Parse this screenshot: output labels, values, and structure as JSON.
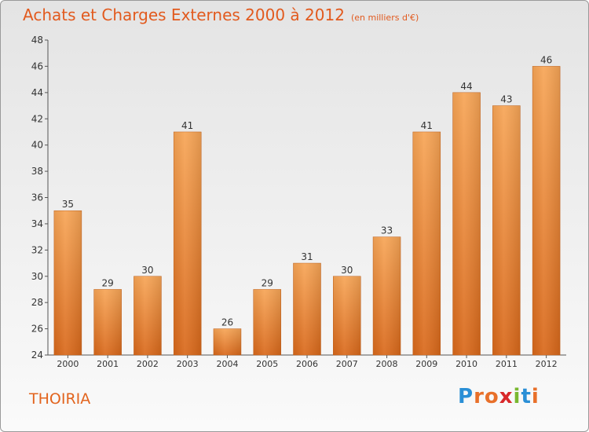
{
  "title": "Achats et Charges Externes 2000 à 2012",
  "subtitle": "(en milliers d'€)",
  "place": "THOIRIA",
  "logo": {
    "letters": [
      "P",
      "r",
      "o",
      "x",
      "i",
      "t",
      "i"
    ],
    "colors": [
      "#2a8fd6",
      "#e8702a",
      "#e8702a",
      "#d8282a",
      "#79b830",
      "#2a8fd6",
      "#e8702a"
    ]
  },
  "chart_data": {
    "type": "bar",
    "categories": [
      "2000",
      "2001",
      "2002",
      "2003",
      "2004",
      "2005",
      "2006",
      "2007",
      "2008",
      "2009",
      "2010",
      "2011",
      "2012"
    ],
    "values": [
      35,
      29,
      30,
      41,
      26,
      29,
      31,
      30,
      33,
      41,
      44,
      43,
      46
    ],
    "title": "Achats et Charges Externes 2000 à 2012",
    "xlabel": "",
    "ylabel": "",
    "ylim": [
      24,
      48
    ],
    "yticks": [
      24,
      26,
      28,
      30,
      32,
      34,
      36,
      38,
      40,
      42,
      44,
      46,
      48
    ],
    "grid": false,
    "bar_color": "#f0862e"
  }
}
